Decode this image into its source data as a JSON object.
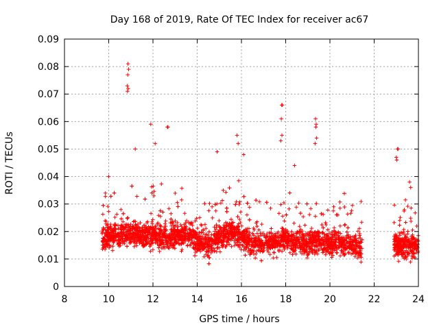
{
  "chart_data": {
    "type": "scatter",
    "title": "Day 168 of 2019, Rate Of TEC Index for receiver ac67",
    "xlabel": "GPS time / hours",
    "ylabel": "ROTI / TECUs",
    "xlim": [
      8,
      24
    ],
    "ylim": [
      0,
      0.09
    ],
    "xticks": [
      8,
      10,
      12,
      14,
      16,
      18,
      20,
      22,
      24
    ],
    "xtick_labels": [
      "8",
      "10",
      "12",
      "14",
      "16",
      "18",
      "20",
      "22",
      "24"
    ],
    "yticks": [
      0,
      0.01,
      0.02,
      0.03,
      0.04,
      0.05,
      0.06,
      0.07,
      0.08,
      0.09
    ],
    "ytick_labels": [
      "0",
      "0.01",
      "0.02",
      "0.03",
      "0.04",
      "0.05",
      "0.06",
      "0.07",
      "0.08",
      "0.09"
    ],
    "grid": true,
    "marker": "+",
    "color": "#ff0000",
    "series": [
      {
        "name": "ROTI",
        "segments": [
          [
            9.7,
            21.45
          ],
          [
            22.9,
            24.0
          ]
        ],
        "band_mean": [
          [
            9.7,
            0.018
          ],
          [
            10.5,
            0.019
          ],
          [
            11.5,
            0.019
          ],
          [
            12.5,
            0.018
          ],
          [
            13.5,
            0.019
          ],
          [
            14.5,
            0.015
          ],
          [
            15.0,
            0.018
          ],
          [
            15.7,
            0.02
          ],
          [
            16.3,
            0.016
          ],
          [
            17.0,
            0.016
          ],
          [
            18.0,
            0.017
          ],
          [
            19.0,
            0.016
          ],
          [
            20.0,
            0.016
          ],
          [
            21.0,
            0.015
          ],
          [
            21.45,
            0.014
          ],
          [
            22.9,
            0.015
          ],
          [
            24.0,
            0.015
          ]
        ],
        "outliers": [
          [
            10.87,
            0.081
          ],
          [
            10.9,
            0.079
          ],
          [
            10.86,
            0.077
          ],
          [
            10.84,
            0.073
          ],
          [
            10.88,
            0.072
          ],
          [
            10.85,
            0.071
          ],
          [
            11.9,
            0.059
          ],
          [
            12.65,
            0.058
          ],
          [
            12.68,
            0.058
          ],
          [
            17.82,
            0.066
          ],
          [
            17.85,
            0.066
          ],
          [
            17.8,
            0.061
          ],
          [
            17.83,
            0.055
          ],
          [
            17.78,
            0.053
          ],
          [
            19.35,
            0.061
          ],
          [
            19.38,
            0.059
          ],
          [
            19.36,
            0.058
          ],
          [
            19.4,
            0.054
          ],
          [
            19.33,
            0.052
          ],
          [
            23.05,
            0.05
          ],
          [
            23.08,
            0.05
          ],
          [
            23.0,
            0.047
          ],
          [
            23.02,
            0.046
          ],
          [
            15.8,
            0.055
          ],
          [
            15.85,
            0.052
          ],
          [
            10.0,
            0.04
          ],
          [
            11.2,
            0.05
          ],
          [
            12.1,
            0.052
          ],
          [
            14.9,
            0.049
          ],
          [
            16.1,
            0.048
          ],
          [
            18.4,
            0.044
          ],
          [
            23.6,
            0.038
          ],
          [
            23.65,
            0.036
          ]
        ]
      }
    ]
  }
}
